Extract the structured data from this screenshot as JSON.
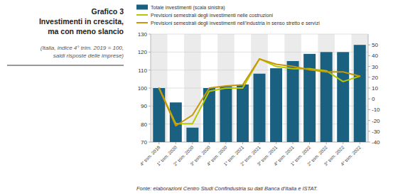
{
  "chart_data": {
    "type": "bar",
    "title": "Grafico 3\nInvestimenti in crescita,\nma con meno slancio",
    "subtitle": "(Italia, indice 4° trim. 2019 = 100,\nsaldi risposte delle imprese)",
    "annotations": [
      "Fonte: elaborazioni Centro Studi Confindustria su dati Banca d’Italia e ISTAT."
    ],
    "categories": [
      "4° trim. 2019",
      "1° trim. 2020",
      "2° trim. 2020",
      "3° trim. 2020",
      "4° trim. 2020",
      "1° trim. 2021",
      "2° trim. 2021",
      "3° trim. 2021",
      "4° trim. 2021",
      "1° trim. 2022",
      "2° trim. 2022",
      "3° trim. 2022",
      "4° trim. 2022"
    ],
    "series": [
      {
        "name": "Totale investimenti (scala sinistra)",
        "type": "bar",
        "color": "#1a6080",
        "values": [
          100,
          92,
          78,
          100,
          101,
          102,
          108,
          111,
          115,
          119,
          120,
          120,
          124
        ]
      },
      {
        "name": "Previsioni semestrali degli investimenti nelle costruzioni",
        "type": "line",
        "axis": "y2",
        "color": "#b5c800",
        "values": [
          10,
          -23,
          -23,
          7,
          10,
          10,
          37,
          30,
          28,
          28,
          26,
          16,
          21
        ]
      },
      {
        "name": "Previsioni semestrali degli investimenti nell’industria in senso stretto e servizi",
        "type": "line",
        "axis": "y2",
        "color": "#c8960a",
        "values": [
          10,
          -25,
          -15,
          10,
          12,
          13,
          37,
          32,
          30,
          27,
          25,
          25,
          21
        ]
      }
    ],
    "ylim": [
      70,
      130
    ],
    "yticks": [
      70,
      80,
      90,
      100,
      110,
      120,
      130
    ],
    "y2lim": [
      -40,
      60
    ],
    "y2ticks": [
      -40,
      -30,
      -20,
      -10,
      0,
      10,
      20,
      30,
      40,
      50
    ],
    "grid": true,
    "legend": "top"
  }
}
